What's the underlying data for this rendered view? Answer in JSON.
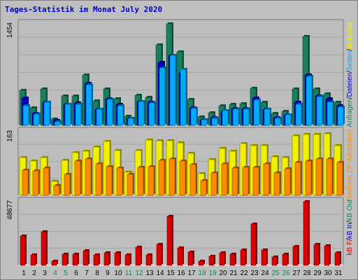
{
  "title": "Tages-Statistik im Monat July 2020",
  "colors": {
    "anfragen": "#1a7f5f",
    "dateien": "#0000c8",
    "seiten": "#00aaff",
    "besuche": "#f0f000",
    "rechner": "#ff8c00",
    "kbf": "#dd0000",
    "weekday": "#000000",
    "weekend": "#1a7f5f"
  },
  "chart_data": [
    {
      "type": "bar",
      "name": "hits",
      "ymax_label": "1454",
      "ymax": 1454,
      "right_labels": [
        {
          "text": "Anfragen",
          "color": "#1a7f5f"
        },
        {
          "text": "/",
          "color": "#000000"
        },
        {
          "text": "Dateien",
          "color": "#0000c8"
        },
        {
          "text": "/",
          "color": "#000000"
        },
        {
          "text": "Seiten",
          "color": "#00aaff"
        },
        {
          "text": "/",
          "color": "#000000"
        },
        {
          "text": "Besuche",
          "color": "#f0f000"
        }
      ],
      "series": [
        {
          "name": "Anfragen",
          "values": [
            500,
            250,
            520,
            90,
            420,
            420,
            720,
            350,
            520,
            380,
            130,
            430,
            400,
            1150,
            1454,
            1050,
            370,
            120,
            180,
            280,
            300,
            310,
            530,
            330,
            170,
            200,
            520,
            1270,
            520,
            450,
            330
          ]
        },
        {
          "name": "Dateien",
          "values": [
            390,
            170,
            330,
            70,
            300,
            320,
            600,
            230,
            380,
            300,
            100,
            340,
            330,
            900,
            1000,
            750,
            250,
            80,
            110,
            200,
            240,
            240,
            390,
            230,
            110,
            150,
            330,
            720,
            420,
            380,
            280
          ]
        },
        {
          "name": "Seiten",
          "values": [
            280,
            160,
            330,
            50,
            300,
            300,
            580,
            230,
            370,
            280,
            100,
            340,
            320,
            820,
            1000,
            800,
            240,
            80,
            100,
            210,
            230,
            230,
            360,
            230,
            100,
            150,
            300,
            700,
            410,
            330,
            260
          ]
        }
      ]
    },
    {
      "type": "bar",
      "name": "visits",
      "ymax_label": "163",
      "ymax": 163,
      "right_labels": [
        {
          "text": "Rechner (IP-Adressen)",
          "color": "#ff8c00"
        }
      ],
      "series": [
        {
          "name": "Besuche",
          "values": [
            97,
            88,
            96,
            35,
            89,
            110,
            113,
            123,
            138,
            114,
            60,
            114,
            141,
            140,
            140,
            135,
            108,
            55,
            91,
            120,
            113,
            133,
            128,
            127,
            98,
            96,
            153,
            155,
            155,
            157,
            127
          ]
        },
        {
          "name": "Rechner",
          "values": [
            65,
            62,
            70,
            25,
            53,
            88,
            94,
            80,
            73,
            70,
            53,
            71,
            73,
            90,
            93,
            88,
            78,
            38,
            58,
            80,
            70,
            71,
            72,
            80,
            58,
            68,
            85,
            88,
            93,
            93,
            85
          ]
        }
      ]
    },
    {
      "type": "bar",
      "name": "kbytes",
      "ymax_label": "48677",
      "ymax": 48677,
      "right_labels": [
        {
          "text": "kB F",
          "color": "#dd0000"
        },
        {
          "text": "/",
          "color": "#000000"
        },
        {
          "text": "kB In",
          "color": "#0000c8"
        },
        {
          "text": "/",
          "color": "#000000"
        },
        {
          "text": "kB Out",
          "color": "#1a7f5f"
        }
      ],
      "series": [
        {
          "name": "kB F",
          "values": [
            22500,
            8000,
            25500,
            3000,
            8500,
            8500,
            11500,
            8000,
            9500,
            9500,
            8000,
            14000,
            8000,
            16000,
            37500,
            13500,
            10000,
            3000,
            7000,
            9500,
            8500,
            11800,
            31800,
            12000,
            6500,
            8500,
            14700,
            48677,
            16000,
            15000,
            9500
          ]
        }
      ]
    }
  ],
  "days": [
    {
      "label": "1",
      "weekend": false
    },
    {
      "label": "2",
      "weekend": false
    },
    {
      "label": "3",
      "weekend": false
    },
    {
      "label": "4",
      "weekend": true
    },
    {
      "label": "5",
      "weekend": true
    },
    {
      "label": "6",
      "weekend": false
    },
    {
      "label": "7",
      "weekend": false
    },
    {
      "label": "8",
      "weekend": false
    },
    {
      "label": "9",
      "weekend": false
    },
    {
      "label": "10",
      "weekend": false
    },
    {
      "label": "11",
      "weekend": true
    },
    {
      "label": "12",
      "weekend": true
    },
    {
      "label": "13",
      "weekend": false
    },
    {
      "label": "14",
      "weekend": false
    },
    {
      "label": "15",
      "weekend": false
    },
    {
      "label": "16",
      "weekend": false
    },
    {
      "label": "17",
      "weekend": false
    },
    {
      "label": "18",
      "weekend": true
    },
    {
      "label": "19",
      "weekend": true
    },
    {
      "label": "20",
      "weekend": false
    },
    {
      "label": "21",
      "weekend": false
    },
    {
      "label": "22",
      "weekend": false
    },
    {
      "label": "23",
      "weekend": false
    },
    {
      "label": "24",
      "weekend": false
    },
    {
      "label": "25",
      "weekend": true
    },
    {
      "label": "26",
      "weekend": true
    },
    {
      "label": "27",
      "weekend": false
    },
    {
      "label": "28",
      "weekend": false
    },
    {
      "label": "29",
      "weekend": false
    },
    {
      "label": "30",
      "weekend": false
    },
    {
      "label": "31",
      "weekend": false
    }
  ]
}
